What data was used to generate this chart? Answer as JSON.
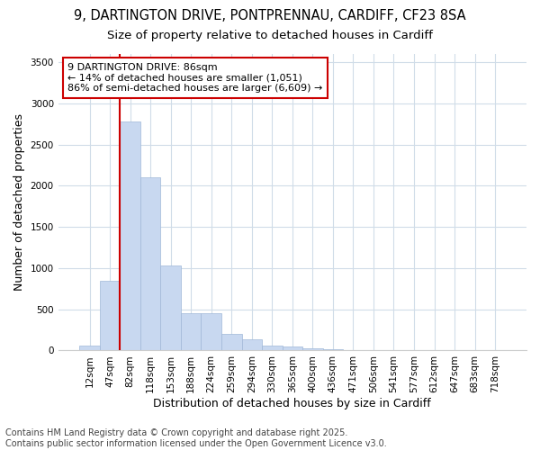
{
  "title_line1": "9, DARTINGTON DRIVE, PONTPRENNAU, CARDIFF, CF23 8SA",
  "title_line2": "Size of property relative to detached houses in Cardiff",
  "xlabel": "Distribution of detached houses by size in Cardiff",
  "ylabel": "Number of detached properties",
  "categories": [
    "12sqm",
    "47sqm",
    "82sqm",
    "118sqm",
    "153sqm",
    "188sqm",
    "224sqm",
    "259sqm",
    "294sqm",
    "330sqm",
    "365sqm",
    "400sqm",
    "436sqm",
    "471sqm",
    "506sqm",
    "541sqm",
    "577sqm",
    "612sqm",
    "647sqm",
    "683sqm",
    "718sqm"
  ],
  "values": [
    65,
    850,
    2780,
    2100,
    1030,
    455,
    455,
    200,
    140,
    65,
    45,
    28,
    18,
    8,
    4,
    2,
    1,
    1,
    0,
    0,
    0
  ],
  "bar_color": "#c8d8f0",
  "bar_edge_color": "#a0b8d8",
  "vline_color": "#cc0000",
  "annotation_text": "9 DARTINGTON DRIVE: 86sqm\n← 14% of detached houses are smaller (1,051)\n86% of semi-detached houses are larger (6,609) →",
  "annotation_box_color": "#ffffff",
  "annotation_box_edge_color": "#cc0000",
  "ylim": [
    0,
    3600
  ],
  "yticks": [
    0,
    500,
    1000,
    1500,
    2000,
    2500,
    3000,
    3500
  ],
  "footer_line1": "Contains HM Land Registry data © Crown copyright and database right 2025.",
  "footer_line2": "Contains public sector information licensed under the Open Government Licence v3.0.",
  "bg_color": "#ffffff",
  "plot_bg_color": "#ffffff",
  "grid_color": "#d0dce8",
  "title1_fontsize": 10.5,
  "title2_fontsize": 9.5,
  "tick_fontsize": 7.5,
  "label_fontsize": 9,
  "annot_fontsize": 8,
  "footer_fontsize": 7
}
